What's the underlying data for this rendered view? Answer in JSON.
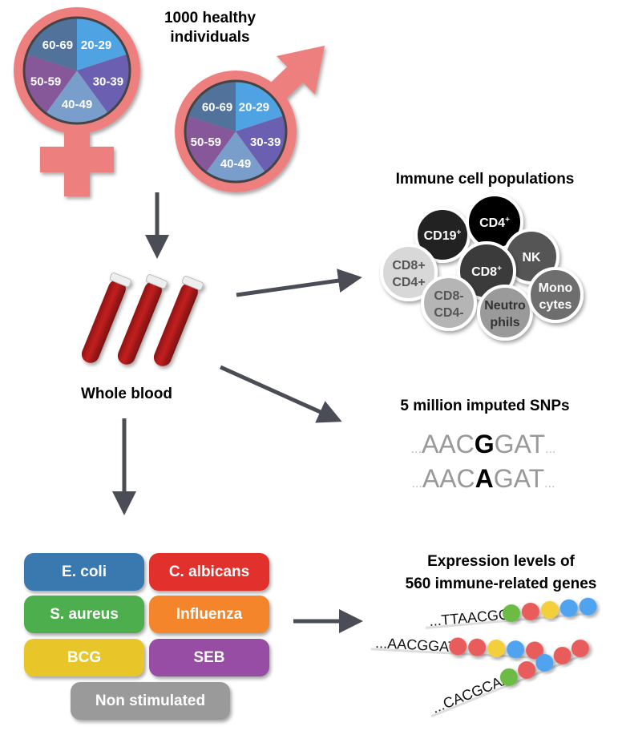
{
  "title": "1000 healthy individuals",
  "title_lines": [
    "1000 healthy",
    "individuals"
  ],
  "age_groups": [
    "20-29",
    "30-39",
    "40-49",
    "50-59",
    "60-69"
  ],
  "age_colors": [
    "#4fa3e3",
    "#6a5fb0",
    "#7a9ecb",
    "#86589a",
    "#51729a"
  ],
  "symbol_color": "#ed7f7f",
  "whole_blood_label": "Whole blood",
  "immune": {
    "title": "Immune cell populations",
    "cells": [
      {
        "label": [
          "CD19",
          "+"
        ],
        "fill": "#222222",
        "text": "#ffffff"
      },
      {
        "label": [
          "CD4",
          "+"
        ],
        "fill": "#000000",
        "text": "#ffffff"
      },
      {
        "label": [
          "NK"
        ],
        "fill": "#555555",
        "text": "#ffffff"
      },
      {
        "label": [
          "CD8+",
          "CD4+"
        ],
        "fill": "#d8d8d8",
        "text": "#555555"
      },
      {
        "label": [
          "CD8",
          "+"
        ],
        "fill": "#3a3a3a",
        "text": "#ffffff"
      },
      {
        "label": [
          "CD8-",
          "CD4-"
        ],
        "fill": "#b5b5b5",
        "text": "#555555"
      },
      {
        "label": [
          "Neutro",
          "phils"
        ],
        "fill": "#9a9a9a",
        "text": "#333333"
      },
      {
        "label": [
          "Mono",
          "cytes"
        ],
        "fill": "#6e6e6e",
        "text": "#ffffff"
      }
    ]
  },
  "snps": {
    "title": "5 million imputed SNPs",
    "seq1": {
      "prefix": "AAC",
      "variant": "G",
      "suffix": "GAT"
    },
    "seq2": {
      "prefix": "AAC",
      "variant": "A",
      "suffix": "GAT"
    },
    "ellipsis": "..."
  },
  "stimuli": [
    {
      "label": "E. coli",
      "color": "#3a78b0"
    },
    {
      "label": "C. albicans",
      "color": "#e2302c"
    },
    {
      "label": "S. aureus",
      "color": "#4cae4c"
    },
    {
      "label": "Influenza",
      "color": "#f5852b"
    },
    {
      "label": "BCG",
      "color": "#e8c62a"
    },
    {
      "label": "SEB",
      "color": "#974da3"
    },
    {
      "label": "Non stimulated",
      "color": "#9a9a9a"
    }
  ],
  "expression": {
    "title_lines": [
      "Expression levels of",
      "560 immune-related genes"
    ],
    "rows": [
      {
        "seq": "...TTAACGG",
        "dots": [
          "#6cbb45",
          "#e85c5c",
          "#f3cf3a",
          "#4fa3ef",
          "#4fa3ef"
        ]
      },
      {
        "seq": "...AACGGAT",
        "dots": [
          "#e85c5c",
          "#e85c5c",
          "#f3cf3a",
          "#4fa3ef",
          "#e85c5c"
        ]
      },
      {
        "seq": "...CACGCAA",
        "dots": [
          "#6cbb45",
          "#e85c5c",
          "#4fa3ef",
          "#e85c5c",
          "#e85c5c"
        ]
      }
    ]
  }
}
